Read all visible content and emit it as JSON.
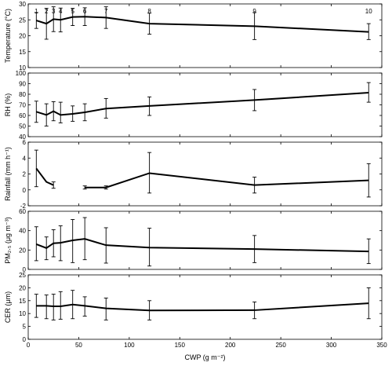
{
  "chart_data": {
    "type": "line",
    "xlabel": "CWP (g m⁻²)",
    "xlim": [
      0,
      350
    ],
    "xticks": [
      "0",
      "50",
      "100",
      "150",
      "200",
      "250",
      "300",
      "350"
    ],
    "x": [
      8,
      18,
      25,
      32,
      44,
      56,
      77,
      120,
      224,
      337
    ],
    "point_labels": [
      "1",
      "2",
      "3",
      "4",
      "5",
      "6",
      "7",
      "8",
      "9",
      "10"
    ],
    "grid": false,
    "panels": [
      {
        "ylabel": "Temperature (°C)",
        "ylim": [
          10,
          30
        ],
        "yticks": [
          "10",
          "15",
          "20",
          "25",
          "30"
        ],
        "values": [
          24.8,
          23.8,
          25.2,
          25.0,
          25.9,
          26.0,
          25.7,
          23.8,
          23.0,
          21.2
        ],
        "err_low": [
          22.3,
          18.9,
          21.3,
          21.2,
          23.2,
          23.2,
          22.3,
          20.5,
          18.8,
          18.8
        ],
        "err_high": [
          27.3,
          28.6,
          29.1,
          28.7,
          28.6,
          28.8,
          29.1,
          27.1,
          27.3,
          23.8
        ]
      },
      {
        "ylabel": "RH (%)",
        "ylim": [
          40,
          100
        ],
        "yticks": [
          "40",
          "50",
          "60",
          "70",
          "80",
          "90",
          "100"
        ],
        "values": [
          63.5,
          60.5,
          64.0,
          60.5,
          61.5,
          63.0,
          66.5,
          69.0,
          74.5,
          81.5
        ],
        "err_low": [
          53.5,
          50.0,
          55.0,
          53.0,
          54.5,
          55.0,
          57.5,
          60.0,
          64.5,
          72.5
        ],
        "err_high": [
          73.5,
          71.0,
          73.0,
          72.5,
          69.0,
          71.0,
          76.0,
          77.5,
          84.5,
          91.0
        ]
      },
      {
        "ylabel": "Rainfall (mm h⁻¹)",
        "ylim": [
          -2,
          6
        ],
        "yticks": [
          "-2",
          "0",
          "2",
          "4",
          "6"
        ],
        "segments": [
          {
            "points": [
              1,
              2,
              3
            ]
          },
          {
            "points": [
              6,
              7,
              8,
              9,
              10
            ]
          }
        ],
        "values": [
          2.7,
          1.0,
          0.6,
          null,
          null,
          0.3,
          0.3,
          2.1,
          0.6,
          1.2
        ],
        "err_low": [
          0.4,
          null,
          0.2,
          null,
          null,
          0.1,
          0.1,
          -0.4,
          -0.4,
          -0.9
        ],
        "err_high": [
          5.0,
          null,
          1.0,
          null,
          null,
          0.5,
          0.5,
          4.7,
          1.6,
          3.3
        ]
      },
      {
        "ylabel": "PM₂.₅ (μg m⁻³)",
        "ylim": [
          0,
          60
        ],
        "yticks": [
          "0",
          "20",
          "40",
          "60"
        ],
        "values": [
          26.0,
          22.0,
          27.0,
          27.5,
          30.0,
          31.5,
          25.0,
          22.5,
          21.0,
          18.5
        ],
        "err_low": [
          9.0,
          10.0,
          13.0,
          9.0,
          7.0,
          10.0,
          6.5,
          3.5,
          7.0,
          6.0
        ],
        "err_high": [
          44.0,
          33.5,
          41.0,
          45.0,
          51.5,
          53.5,
          43.0,
          42.5,
          35.0,
          31.5
        ]
      },
      {
        "ylabel": "CER (μm)",
        "ylim": [
          0,
          25
        ],
        "yticks": [
          "0",
          "5",
          "10",
          "15",
          "20",
          "25"
        ],
        "values": [
          13.0,
          13.0,
          12.8,
          12.8,
          13.5,
          13.0,
          12.0,
          11.2,
          11.3,
          14.0
        ],
        "err_low": [
          8.5,
          8.0,
          7.5,
          7.8,
          8.0,
          9.0,
          7.5,
          7.5,
          8.0,
          8.0
        ],
        "err_high": [
          17.5,
          17.2,
          17.5,
          18.5,
          19.0,
          16.5,
          16.0,
          15.0,
          14.5,
          20.0
        ]
      }
    ]
  },
  "colors": {
    "line": "#000000",
    "axis": "#000000",
    "background": "#ffffff"
  }
}
